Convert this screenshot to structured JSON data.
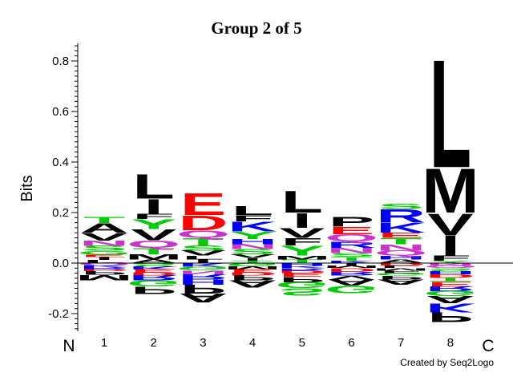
{
  "chart_data": {
    "type": "sequence-logo",
    "title": "Group 2 of 5",
    "ylabel": "Bits",
    "ylim": [
      -0.27,
      0.87
    ],
    "yticks": [
      -0.2,
      0.0,
      0.2,
      0.4,
      0.6,
      0.8
    ],
    "ytick_labels": [
      "-0.2",
      "0.0",
      "0.2",
      "0.4",
      "0.6",
      "0.8"
    ],
    "positions": [
      "1",
      "2",
      "3",
      "4",
      "5",
      "6",
      "7",
      "8"
    ],
    "n_label": "N",
    "c_label": "C",
    "credit": "Created by Seq2Logo",
    "colors": {
      "hydrophobic": "#000000",
      "polar": "#00cc00",
      "basic": "#0000ff",
      "acidic": "#ff0000",
      "amide": "#cc33cc"
    },
    "columns": [
      {
        "position": 1,
        "positive": [
          [
            "T",
            0.025
          ],
          [
            "A",
            0.04
          ],
          [
            "V",
            0.03
          ],
          [
            "N",
            0.02
          ],
          [
            "S",
            0.02
          ],
          [
            "G",
            0.015
          ],
          [
            "E",
            0.01
          ],
          [
            "I",
            0.012
          ],
          [
            "L",
            0.012
          ]
        ],
        "negative": [
          [
            "Q",
            0.008
          ],
          [
            "K",
            0.008
          ],
          [
            "R",
            0.008
          ],
          [
            "D",
            0.008
          ],
          [
            "P",
            0.015
          ],
          [
            "M",
            0.02
          ]
        ]
      },
      {
        "position": 2,
        "positive": [
          [
            "L",
            0.1
          ],
          [
            "I",
            0.06
          ],
          [
            "F",
            0.02
          ],
          [
            "Y",
            0.04
          ],
          [
            "V",
            0.045
          ],
          [
            "Q",
            0.03
          ],
          [
            "T",
            0.025
          ],
          [
            "M",
            0.02
          ],
          [
            "A",
            0.015
          ]
        ],
        "negative": [
          [
            "S",
            0.012
          ],
          [
            "K",
            0.012
          ],
          [
            "E",
            0.012
          ],
          [
            "D",
            0.012
          ],
          [
            "R",
            0.02
          ],
          [
            "G",
            0.025
          ],
          [
            "P",
            0.03
          ]
        ]
      },
      {
        "position": 3,
        "positive": [
          [
            "E",
            0.09
          ],
          [
            "D",
            0.06
          ],
          [
            "Q",
            0.03
          ],
          [
            "T",
            0.03
          ],
          [
            "S",
            0.02
          ],
          [
            "V",
            0.02
          ],
          [
            "L",
            0.015
          ],
          [
            "I",
            0.015
          ]
        ],
        "negative": [
          [
            "K",
            0.015
          ],
          [
            "G",
            0.015
          ],
          [
            "N",
            0.015
          ],
          [
            "R",
            0.02
          ],
          [
            "H",
            0.02
          ],
          [
            "P",
            0.035
          ],
          [
            "A",
            0.035
          ]
        ]
      },
      {
        "position": 4,
        "positive": [
          [
            "L",
            0.035
          ],
          [
            "F",
            0.025
          ],
          [
            "K",
            0.04
          ],
          [
            "Y",
            0.03
          ],
          [
            "H",
            0.02
          ],
          [
            "N",
            0.02
          ],
          [
            "S",
            0.02
          ],
          [
            "V",
            0.015
          ],
          [
            "I",
            0.01
          ],
          [
            "T",
            0.01
          ]
        ],
        "negative": [
          [
            "G",
            0.012
          ],
          [
            "M",
            0.012
          ],
          [
            "E",
            0.012
          ],
          [
            "D",
            0.012
          ],
          [
            "P",
            0.02
          ],
          [
            "A",
            0.03
          ]
        ]
      },
      {
        "position": 5,
        "positive": [
          [
            "L",
            0.09
          ],
          [
            "I",
            0.06
          ],
          [
            "V",
            0.04
          ],
          [
            "F",
            0.03
          ],
          [
            "Y",
            0.04
          ],
          [
            "M",
            0.015
          ],
          [
            "T",
            0.015
          ]
        ],
        "negative": [
          [
            "H",
            0.01
          ],
          [
            "K",
            0.01
          ],
          [
            "R",
            0.01
          ],
          [
            "D",
            0.01
          ],
          [
            "E",
            0.015
          ],
          [
            "P",
            0.02
          ],
          [
            "G",
            0.025
          ],
          [
            "S",
            0.03
          ]
        ]
      },
      {
        "position": 6,
        "positive": [
          [
            "P",
            0.04
          ],
          [
            "E",
            0.03
          ],
          [
            "Q",
            0.03
          ],
          [
            "R",
            0.025
          ],
          [
            "N",
            0.02
          ],
          [
            "S",
            0.015
          ],
          [
            "T",
            0.015
          ],
          [
            "K",
            0.01
          ]
        ],
        "negative": [
          [
            "I",
            0.01
          ],
          [
            "M",
            0.01
          ],
          [
            "D",
            0.015
          ],
          [
            "R",
            0.015
          ],
          [
            "V",
            0.015
          ],
          [
            "A",
            0.025
          ],
          [
            "G",
            0.03
          ]
        ]
      },
      {
        "position": 7,
        "positive": [
          [
            "S",
            0.02
          ],
          [
            "R",
            0.055
          ],
          [
            "K",
            0.04
          ],
          [
            "E",
            0.02
          ],
          [
            "T",
            0.025
          ],
          [
            "N",
            0.025
          ],
          [
            "Q",
            0.02
          ],
          [
            "H",
            0.015
          ],
          [
            "A",
            0.015
          ]
        ],
        "negative": [
          [
            "D",
            0.01
          ],
          [
            "L",
            0.01
          ],
          [
            "M",
            0.01
          ],
          [
            "F",
            0.01
          ],
          [
            "G",
            0.01
          ],
          [
            "P",
            0.015
          ],
          [
            "A",
            0.02
          ]
        ]
      },
      {
        "position": 8,
        "positive": [
          [
            "L",
            0.44
          ],
          [
            "M",
            0.18
          ],
          [
            "V",
            0.09
          ],
          [
            "I",
            0.08
          ],
          [
            "F",
            0.02
          ],
          [
            "Y",
            0.01
          ]
        ],
        "negative": [
          [
            "N",
            0.01
          ],
          [
            "Q",
            0.01
          ],
          [
            "S",
            0.012
          ],
          [
            "H",
            0.012
          ],
          [
            "D",
            0.015
          ],
          [
            "T",
            0.015
          ],
          [
            "E",
            0.018
          ],
          [
            "R",
            0.018
          ],
          [
            "G",
            0.02
          ],
          [
            "A",
            0.03
          ],
          [
            "K",
            0.035
          ],
          [
            "P",
            0.04
          ]
        ]
      }
    ]
  }
}
